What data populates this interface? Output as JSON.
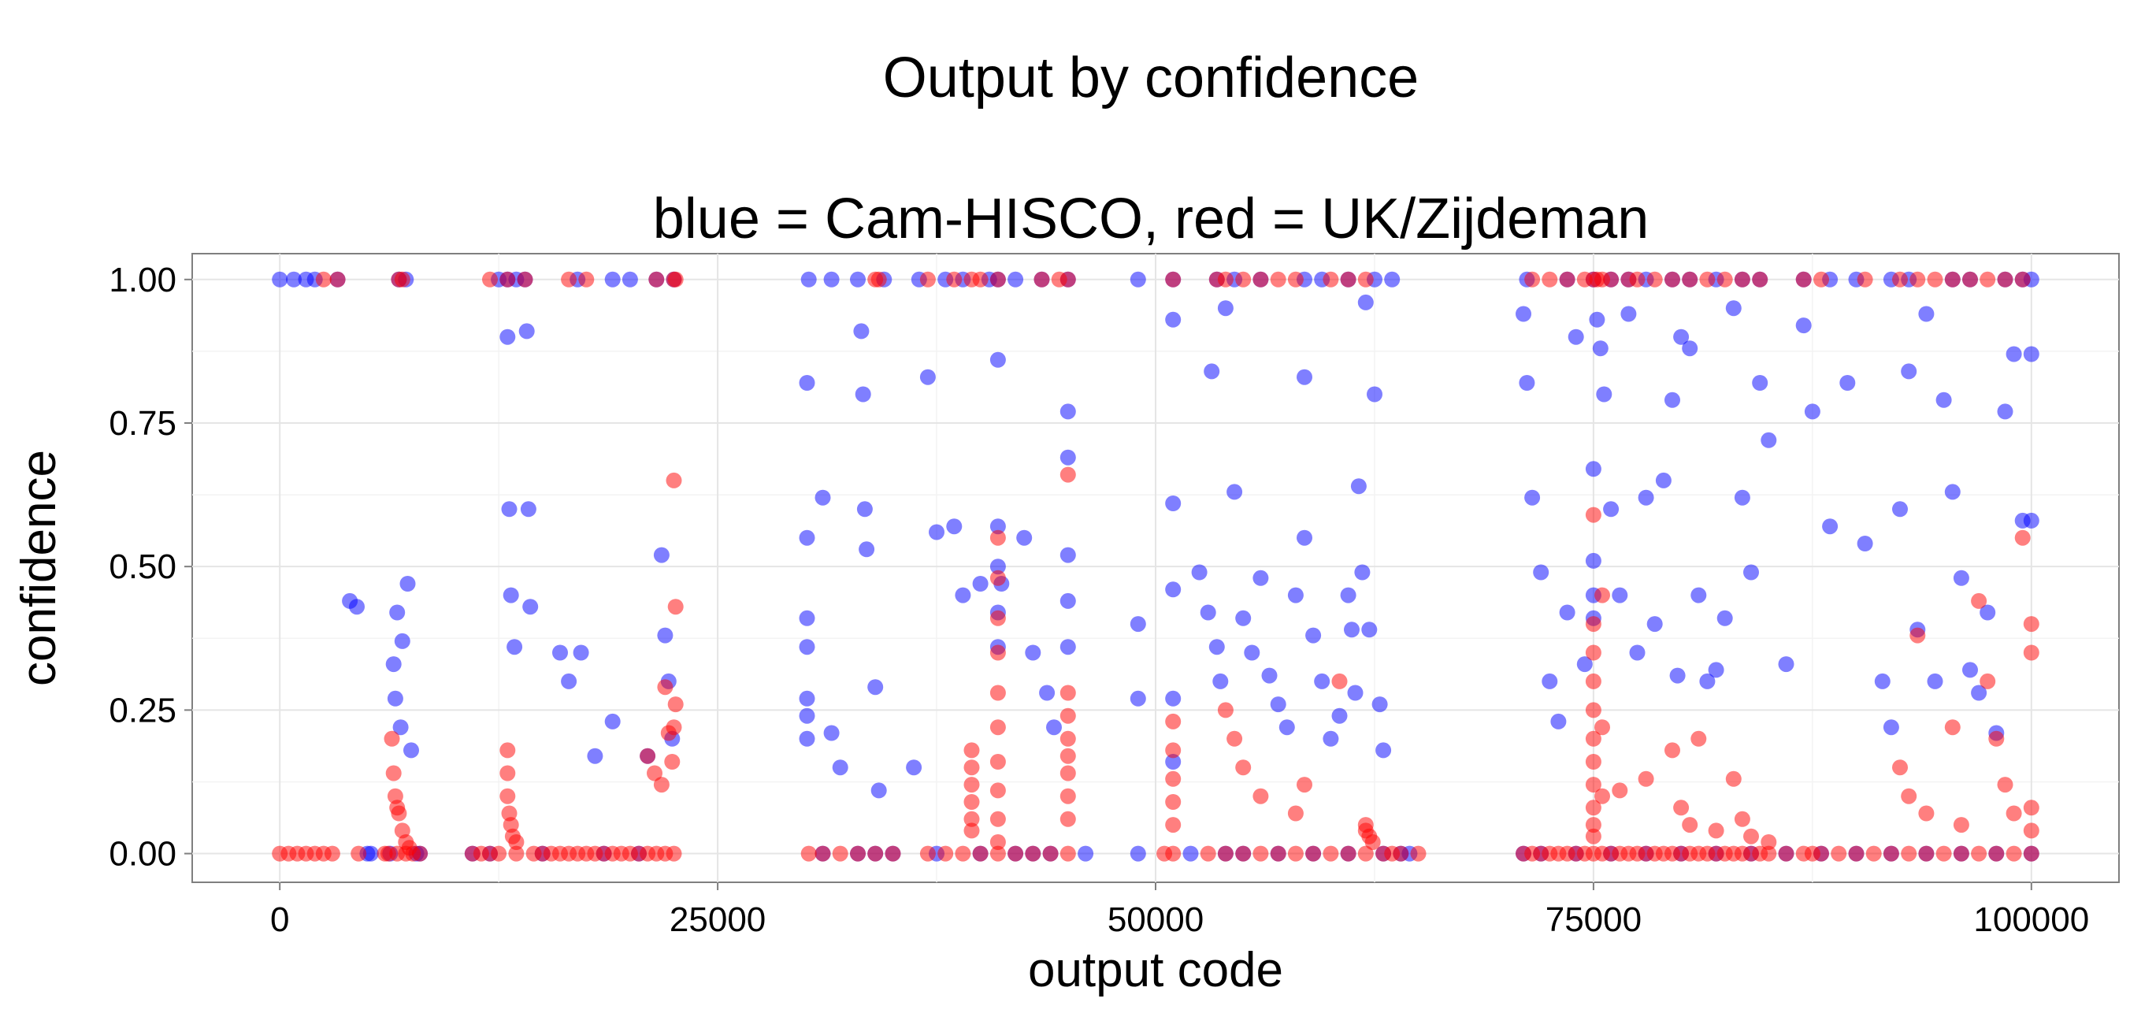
{
  "chart_data": {
    "type": "scatter",
    "title": "Output by confidence",
    "subtitle": "blue = Cam-HISCO, red = UK/Zijdeman",
    "xlabel": "output code",
    "ylabel": "confidence",
    "xlim": [
      -5000,
      105000
    ],
    "ylim": [
      -0.05,
      1.045
    ],
    "x_ticks": [
      0,
      25000,
      50000,
      75000,
      100000
    ],
    "x_tick_labels": [
      "0",
      "25000",
      "50000",
      "75000",
      "100000"
    ],
    "y_ticks": [
      0,
      0.25,
      0.5,
      0.75,
      1
    ],
    "y_tick_labels": [
      "0.00",
      "0.25",
      "0.50",
      "0.75",
      "1.00"
    ],
    "grid": true,
    "legend": "none",
    "series": [
      {
        "color": "#0000ff",
        "x": [
          0,
          1500,
          3300,
          6800,
          7200,
          13000,
          13500,
          14000,
          17000,
          19000,
          20000,
          21500,
          22500,
          30200,
          31500,
          33000,
          34500,
          36500,
          38000,
          39000,
          40500,
          41000,
          42000,
          43500,
          45000,
          49000,
          51000,
          53500,
          54500,
          56000,
          58500,
          59500,
          61000,
          62500,
          63500,
          71200,
          73500,
          75000,
          76000,
          77000,
          78000,
          79500,
          80500,
          82000,
          83500,
          84500,
          87000,
          88500,
          90000,
          92000,
          93000,
          95500,
          96500,
          98500,
          99500,
          100000,
          6500,
          6600,
          6700,
          6900,
          7000,
          7300,
          7500,
          4000,
          4400,
          5000,
          13000,
          13100,
          13200,
          13400,
          14100,
          14200,
          14300,
          16000,
          16500,
          17200,
          18000,
          19000,
          21000,
          21800,
          22000,
          22200,
          22400,
          30100,
          30100,
          30100,
          30100,
          30100,
          30100,
          30100,
          31000,
          31500,
          32000,
          33200,
          33300,
          33400,
          33500,
          34000,
          34200,
          36200,
          37000,
          37500,
          38500,
          39000,
          40000,
          41000,
          41000,
          41000,
          41000,
          41000,
          41200,
          42500,
          43000,
          43800,
          44200,
          45000,
          45000,
          45000,
          45000,
          45000,
          49000,
          49000,
          51000,
          51000,
          51000,
          51000,
          51000,
          52500,
          53000,
          53200,
          53500,
          53700,
          54000,
          54500,
          55000,
          55500,
          56000,
          56500,
          57000,
          57500,
          58000,
          58500,
          58500,
          59000,
          59500,
          60000,
          60500,
          61000,
          61200,
          61400,
          61600,
          61800,
          62000,
          62200,
          62500,
          62800,
          63000,
          71000,
          71200,
          71500,
          72000,
          72500,
          73000,
          73500,
          74000,
          74500,
          75000,
          75000,
          75000,
          75000,
          75200,
          75400,
          75600,
          76000,
          76500,
          77000,
          77500,
          78000,
          78500,
          79000,
          79500,
          79800,
          80000,
          80500,
          81000,
          81500,
          82000,
          82500,
          83000,
          83500,
          84000,
          84500,
          85000,
          86000,
          87000,
          87500,
          88500,
          89500,
          90500,
          91500,
          92000,
          92500,
          93000,
          93500,
          94000,
          94500,
          95000,
          95500,
          96000,
          96500,
          97000,
          97500,
          98000,
          98500,
          99000,
          99500,
          100000,
          100000,
          800,
          2000,
          5200,
          6300,
          7800,
          8000,
          11000,
          12000,
          12500,
          15000,
          18500,
          20500,
          31000,
          33000,
          34000,
          35000,
          37500,
          40000,
          42000,
          43000,
          44000,
          46000,
          49000,
          52000,
          54000,
          55000,
          57000,
          59000,
          61000,
          63000,
          64000,
          64500,
          71000,
          72000,
          74000,
          76000,
          78000,
          80000,
          82000,
          84000,
          86000,
          88000,
          90000,
          92000,
          94000,
          96000,
          98000,
          100000
        ],
        "y": [
          1.0,
          1.0,
          1.0,
          1.0,
          1.0,
          1.0,
          1.0,
          1.0,
          1.0,
          1.0,
          1.0,
          1.0,
          1.0,
          1.0,
          1.0,
          1.0,
          1.0,
          1.0,
          1.0,
          1.0,
          1.0,
          1.0,
          1.0,
          1.0,
          1.0,
          1.0,
          1.0,
          1.0,
          1.0,
          1.0,
          1.0,
          1.0,
          1.0,
          1.0,
          1.0,
          1.0,
          1.0,
          1.0,
          1.0,
          1.0,
          1.0,
          1.0,
          1.0,
          1.0,
          1.0,
          1.0,
          1.0,
          1.0,
          1.0,
          1.0,
          1.0,
          1.0,
          1.0,
          1.0,
          1.0,
          1.0,
          0.33,
          0.27,
          0.42,
          0.22,
          0.37,
          0.47,
          0.18,
          0.44,
          0.43,
          0.0,
          0.9,
          0.6,
          0.45,
          0.36,
          0.91,
          0.6,
          0.43,
          0.35,
          0.3,
          0.35,
          0.17,
          0.23,
          0.17,
          0.52,
          0.38,
          0.3,
          0.2,
          0.82,
          0.55,
          0.41,
          0.36,
          0.27,
          0.24,
          0.2,
          0.62,
          0.21,
          0.15,
          0.91,
          0.8,
          0.6,
          0.53,
          0.29,
          0.11,
          0.15,
          0.83,
          0.56,
          0.57,
          0.45,
          0.47,
          0.86,
          0.57,
          0.5,
          0.42,
          0.36,
          0.47,
          0.55,
          0.35,
          0.28,
          0.22,
          0.77,
          0.69,
          0.52,
          0.44,
          0.36,
          0.4,
          0.27,
          0.93,
          0.61,
          0.46,
          0.27,
          0.16,
          0.49,
          0.42,
          0.84,
          0.36,
          0.3,
          0.95,
          0.63,
          0.41,
          0.35,
          0.48,
          0.31,
          0.26,
          0.22,
          0.45,
          0.83,
          0.55,
          0.38,
          0.3,
          0.2,
          0.24,
          0.45,
          0.39,
          0.28,
          0.64,
          0.49,
          0.96,
          0.39,
          0.8,
          0.26,
          0.18,
          0.94,
          0.82,
          0.62,
          0.49,
          0.3,
          0.23,
          0.42,
          0.9,
          0.33,
          0.67,
          0.51,
          0.45,
          0.41,
          0.93,
          0.88,
          0.8,
          0.6,
          0.45,
          0.94,
          0.35,
          0.62,
          0.4,
          0.65,
          0.79,
          0.31,
          0.9,
          0.88,
          0.45,
          0.3,
          0.32,
          0.41,
          0.95,
          0.62,
          0.49,
          0.82,
          0.72,
          0.33,
          0.92,
          0.77,
          0.57,
          0.82,
          0.54,
          0.3,
          0.22,
          0.6,
          0.84,
          0.39,
          0.94,
          0.3,
          0.79,
          0.63,
          0.48,
          0.32,
          0.28,
          0.42,
          0.21,
          0.77,
          0.87,
          0.58,
          0.87,
          0.58,
          1.0,
          1.0,
          0.0,
          0.0,
          0.0,
          0.0,
          0.0,
          0.0,
          1.0,
          0.0,
          0.0,
          0.0,
          0.0,
          0.0,
          0.0,
          0.0,
          0.0,
          0.0,
          0.0,
          0.0,
          0.0,
          0.0,
          0.0,
          0.0,
          0.0,
          0.0,
          0.0,
          0.0,
          0.0,
          0.0,
          0.0,
          0.0,
          0.0,
          0.0,
          0.0,
          0.0,
          0.0,
          0.0,
          0.0,
          0.0,
          0.0,
          0.0,
          0.0,
          0.0,
          0.0,
          0.0,
          0.0,
          0.0
        ]
      },
      {
        "color": "#ff0000",
        "x": [
          2500,
          3300,
          6800,
          7000,
          12000,
          13000,
          14000,
          16500,
          17500,
          21500,
          22500,
          22600,
          34000,
          34200,
          37000,
          38500,
          39500,
          40000,
          41000,
          43500,
          44500,
          45000,
          51000,
          53500,
          54000,
          55000,
          56000,
          57000,
          58000,
          60000,
          61000,
          62000,
          71500,
          72500,
          73500,
          74500,
          75000,
          75200,
          75500,
          76000,
          77000,
          77500,
          78500,
          79500,
          80500,
          81500,
          82500,
          83500,
          84500,
          87000,
          88000,
          90500,
          92500,
          93500,
          94500,
          95500,
          96500,
          97500,
          98500,
          99500,
          6400,
          6500,
          6600,
          6800,
          7000,
          7200,
          7400,
          6700,
          13000,
          13000,
          13000,
          13100,
          13200,
          13300,
          13500,
          21000,
          21400,
          21800,
          22000,
          22200,
          22400,
          22600,
          22600,
          22500,
          22500,
          39500,
          39500,
          39500,
          39500,
          39500,
          39500,
          41000,
          41000,
          41000,
          41000,
          41000,
          41000,
          41000,
          41000,
          41000,
          41000,
          45000,
          45000,
          45000,
          45000,
          45000,
          45000,
          45000,
          45000,
          51000,
          51000,
          51000,
          51000,
          51000,
          54000,
          54500,
          55000,
          56000,
          58000,
          58500,
          60500,
          62000,
          62000,
          62200,
          62400,
          75000,
          75000,
          75000,
          75000,
          75000,
          75000,
          75000,
          75000,
          75000,
          75000,
          75000,
          75500,
          75500,
          75500,
          76500,
          78000,
          79500,
          80000,
          80500,
          81000,
          82000,
          83000,
          83500,
          84000,
          85000,
          92500,
          93000,
          93500,
          94000,
          95500,
          96000,
          97000,
          97500,
          98000,
          98500,
          99000,
          99500,
          100000,
          100000,
          100000,
          100000,
          0,
          500,
          1000,
          1500,
          2000,
          2500,
          3000,
          4500,
          6000,
          6200,
          6700,
          7200,
          7600,
          8000,
          11000,
          11500,
          12000,
          12500,
          13500,
          14500,
          15000,
          15500,
          16000,
          16500,
          17000,
          17500,
          18000,
          18500,
          19000,
          19500,
          20000,
          20500,
          21000,
          21500,
          22000,
          22500,
          30200,
          31000,
          32000,
          33000,
          34000,
          35000,
          37000,
          38000,
          39000,
          40000,
          41000,
          42000,
          43000,
          44000,
          45000,
          50500,
          51000,
          53000,
          54000,
          55000,
          56000,
          57000,
          58000,
          59000,
          60000,
          61000,
          62000,
          63000,
          63500,
          64000,
          65000,
          71000,
          71500,
          72000,
          72500,
          73000,
          73500,
          74000,
          74500,
          75000,
          75500,
          76000,
          76500,
          77000,
          77500,
          78000,
          78500,
          79000,
          79500,
          80000,
          80500,
          81000,
          81500,
          82000,
          82500,
          83000,
          83500,
          84000,
          84500,
          85000,
          86000,
          87000,
          87500,
          88000,
          89000,
          90000,
          91000,
          92000,
          93000,
          94000,
          95000,
          96000,
          97000,
          98000,
          99000,
          100000
        ],
        "y": [
          1.0,
          1.0,
          1.0,
          1.0,
          1.0,
          1.0,
          1.0,
          1.0,
          1.0,
          1.0,
          1.0,
          1.0,
          1.0,
          1.0,
          1.0,
          1.0,
          1.0,
          1.0,
          1.0,
          1.0,
          1.0,
          1.0,
          1.0,
          1.0,
          1.0,
          1.0,
          1.0,
          1.0,
          1.0,
          1.0,
          1.0,
          1.0,
          1.0,
          1.0,
          1.0,
          1.0,
          1.0,
          1.0,
          1.0,
          1.0,
          1.0,
          1.0,
          1.0,
          1.0,
          1.0,
          1.0,
          1.0,
          1.0,
          1.0,
          1.0,
          1.0,
          1.0,
          1.0,
          1.0,
          1.0,
          1.0,
          1.0,
          1.0,
          1.0,
          1.0,
          0.2,
          0.14,
          0.1,
          0.07,
          0.04,
          0.02,
          0.01,
          0.08,
          0.18,
          0.14,
          0.1,
          0.07,
          0.05,
          0.03,
          0.02,
          0.17,
          0.14,
          0.12,
          0.29,
          0.21,
          0.16,
          0.43,
          0.26,
          0.65,
          0.22,
          0.18,
          0.15,
          0.12,
          0.09,
          0.06,
          0.04,
          0.55,
          0.48,
          0.41,
          0.35,
          0.28,
          0.22,
          0.16,
          0.11,
          0.06,
          0.02,
          0.66,
          0.28,
          0.24,
          0.2,
          0.17,
          0.14,
          0.1,
          0.06,
          0.23,
          0.18,
          0.13,
          0.09,
          0.05,
          0.25,
          0.2,
          0.15,
          0.1,
          0.07,
          0.12,
          0.3,
          0.04,
          0.05,
          0.03,
          0.02,
          0.59,
          0.4,
          0.35,
          0.3,
          0.25,
          0.2,
          0.16,
          0.12,
          0.08,
          0.05,
          0.03,
          0.45,
          0.22,
          0.1,
          0.11,
          0.13,
          0.18,
          0.08,
          0.05,
          0.2,
          0.04,
          0.13,
          0.06,
          0.03,
          0.02,
          0.15,
          0.1,
          0.38,
          0.07,
          0.22,
          0.05,
          0.44,
          0.3,
          0.2,
          0.12,
          0.07,
          0.55,
          0.4,
          0.35,
          0.08,
          0.04,
          0.0,
          0.0,
          0.0,
          0.0,
          0.0,
          0.0,
          0.0,
          0.0,
          0.0,
          0.0,
          0.0,
          0.0,
          0.0,
          0.0,
          0.0,
          0.0,
          0.0,
          0.0,
          0.0,
          0.0,
          0.0,
          0.0,
          0.0,
          0.0,
          0.0,
          0.0,
          0.0,
          0.0,
          0.0,
          0.0,
          0.0,
          0.0,
          0.0,
          0.0,
          0.0,
          0.0,
          0.0,
          0.0,
          0.0,
          0.0,
          0.0,
          0.0,
          0.0,
          0.0,
          0.0,
          0.0,
          0.0,
          0.0,
          0.0,
          0.0,
          0.0,
          0.0,
          0.0,
          0.0,
          0.0,
          0.0,
          0.0,
          0.0,
          0.0,
          0.0,
          0.0,
          0.0,
          0.0,
          0.0,
          0.0,
          0.0,
          0.0,
          0.0,
          0.0,
          0.0,
          0.0,
          0.0,
          0.0,
          0.0,
          0.0,
          0.0,
          0.0,
          0.0,
          0.0,
          0.0,
          0.0,
          0.0,
          0.0,
          0.0,
          0.0,
          0.0,
          0.0,
          0.0,
          0.0,
          0.0,
          0.0,
          0.0,
          0.0,
          0.0,
          0.0,
          0.0,
          0.0,
          0.0,
          0.0,
          0.0,
          0.0,
          0.0,
          0.0,
          0.0,
          0.0,
          0.0,
          0.0,
          0.0,
          0.0,
          0.0,
          0.0,
          0.0
        ]
      }
    ]
  }
}
